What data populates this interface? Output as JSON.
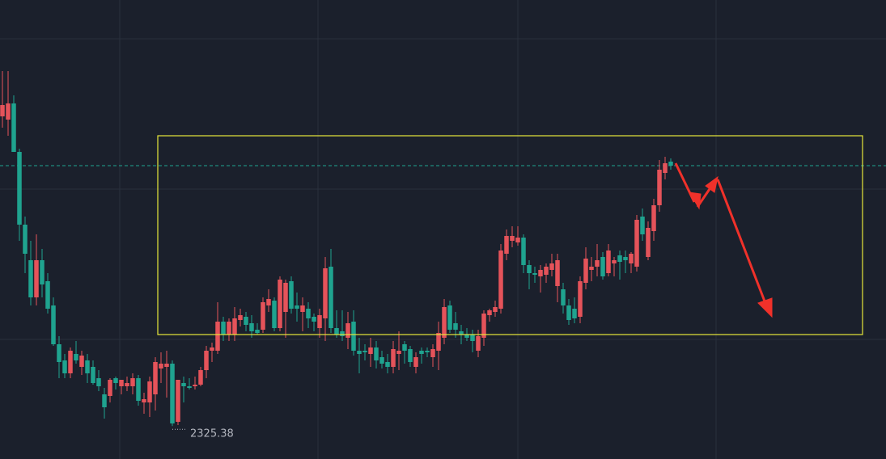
{
  "chart_data": {
    "type": "candlestick",
    "open": [
      2517,
      2515,
      2525,
      2495,
      2450,
      2428,
      2405,
      2428,
      2415,
      2400,
      2376,
      2366,
      2358,
      2370,
      2362,
      2366,
      2362,
      2355,
      2345,
      2344,
      2355,
      2350,
      2350,
      2350,
      2355,
      2340,
      2340,
      2345,
      2361,
      2362,
      2364,
      2328,
      2352,
      2350,
      2350,
      2351,
      2360,
      2372,
      2372,
      2390,
      2382,
      2382,
      2391,
      2393,
      2389,
      2385,
      2385,
      2400,
      2403,
      2386,
      2396,
      2415,
      2400,
      2396,
      2398,
      2393,
      2386,
      2392,
      2424,
      2386,
      2384,
      2380,
      2390,
      2372,
      2372,
      2370,
      2374,
      2368,
      2365,
      2362,
      2370,
      2376,
      2373,
      2362,
      2372,
      2372,
      2368,
      2372,
      2380,
      2400,
      2389,
      2384,
      2382,
      2382,
      2372,
      2380,
      2394,
      2396,
      2398,
      2432,
      2440,
      2439,
      2442,
      2425,
      2420,
      2418,
      2419,
      2422,
      2412,
      2410,
      2400,
      2398,
      2393,
      2414,
      2422,
      2424,
      2430,
      2420,
      2426,
      2431,
      2430,
      2426,
      2424,
      2455,
      2430,
      2446,
      2462,
      2482,
      2489
    ],
    "high": [
      2545,
      2545,
      2530,
      2497,
      2455,
      2440,
      2444,
      2435,
      2420,
      2405,
      2381,
      2370,
      2374,
      2378,
      2372,
      2370,
      2366,
      2360,
      2349,
      2355,
      2356,
      2354,
      2356,
      2358,
      2357,
      2346,
      2356,
      2368,
      2371,
      2372,
      2366,
      2354,
      2356,
      2355,
      2356,
      2362,
      2375,
      2377,
      2402,
      2393,
      2392,
      2399,
      2398,
      2396,
      2394,
      2389,
      2405,
      2410,
      2405,
      2418,
      2416,
      2418,
      2408,
      2405,
      2402,
      2395,
      2398,
      2430,
      2435,
      2397,
      2397,
      2396,
      2397,
      2380,
      2376,
      2380,
      2378,
      2372,
      2370,
      2378,
      2384,
      2378,
      2375,
      2371,
      2374,
      2374,
      2376,
      2390,
      2404,
      2403,
      2396,
      2388,
      2386,
      2385,
      2385,
      2397,
      2398,
      2403,
      2438,
      2447,
      2449,
      2449,
      2444,
      2428,
      2424,
      2425,
      2426,
      2432,
      2432,
      2414,
      2404,
      2405,
      2418,
      2436,
      2430,
      2438,
      2433,
      2438,
      2430,
      2434,
      2434,
      2433,
      2456,
      2460,
      2452,
      2466,
      2490,
      2492,
      2491
    ],
    "low": [
      2510,
      2505,
      2495,
      2440,
      2420,
      2400,
      2400,
      2405,
      2395,
      2375,
      2355,
      2355,
      2355,
      2364,
      2357,
      2352,
      2351,
      2347,
      2330,
      2340,
      2348,
      2345,
      2347,
      2345,
      2338,
      2333,
      2331,
      2335,
      2352,
      2343,
      2325.38,
      2326,
      2340,
      2348,
      2348,
      2350,
      2355,
      2365,
      2370,
      2378,
      2378,
      2378,
      2387,
      2384,
      2380,
      2382,
      2383,
      2396,
      2384,
      2384,
      2380,
      2395,
      2390,
      2384,
      2386,
      2384,
      2380,
      2378,
      2383,
      2380,
      2378,
      2373,
      2369,
      2358,
      2366,
      2362,
      2361,
      2361,
      2358,
      2358,
      2360,
      2364,
      2362,
      2358,
      2364,
      2368,
      2362,
      2360,
      2376,
      2383,
      2380,
      2376,
      2378,
      2371,
      2368,
      2375,
      2390,
      2393,
      2395,
      2428,
      2436,
      2437,
      2420,
      2410,
      2414,
      2408,
      2414,
      2418,
      2402,
      2395,
      2388,
      2389,
      2389,
      2410,
      2415,
      2418,
      2416,
      2418,
      2418,
      2416,
      2420,
      2420,
      2421,
      2440,
      2428,
      2440,
      2458,
      2478,
      2484
    ],
    "close": [
      2524,
      2525,
      2495,
      2450,
      2432,
      2405,
      2428,
      2413,
      2398,
      2376,
      2365,
      2358,
      2372,
      2366,
      2369,
      2358,
      2352,
      2350,
      2337,
      2354,
      2352,
      2354,
      2352,
      2355,
      2341,
      2342,
      2353,
      2365,
      2364,
      2364,
      2327,
      2354,
      2350,
      2349,
      2351,
      2360,
      2372,
      2374,
      2390,
      2382,
      2390,
      2392,
      2394,
      2388,
      2384,
      2383,
      2402,
      2404,
      2386,
      2416,
      2414,
      2398,
      2398,
      2400,
      2392,
      2390,
      2394,
      2423,
      2386,
      2382,
      2381,
      2389,
      2372,
      2370,
      2371,
      2374,
      2366,
      2364,
      2362,
      2373,
      2372,
      2372,
      2365,
      2368,
      2370,
      2371,
      2373,
      2383,
      2399,
      2385,
      2385,
      2382,
      2380,
      2378,
      2381,
      2395,
      2397,
      2399,
      2434,
      2443,
      2443,
      2442,
      2425,
      2420,
      2419,
      2422,
      2424,
      2426,
      2428,
      2400,
      2391,
      2392,
      2415,
      2429,
      2424,
      2428,
      2418,
      2434,
      2428,
      2427,
      2428,
      2432,
      2453,
      2444,
      2448,
      2462,
      2484,
      2488,
      2486.5
    ],
    "up_color": "#e5535a",
    "down_color": "#1fa38f",
    "ylim": [
      2305,
      2589
    ],
    "price_line": 2486.5
  }
}
